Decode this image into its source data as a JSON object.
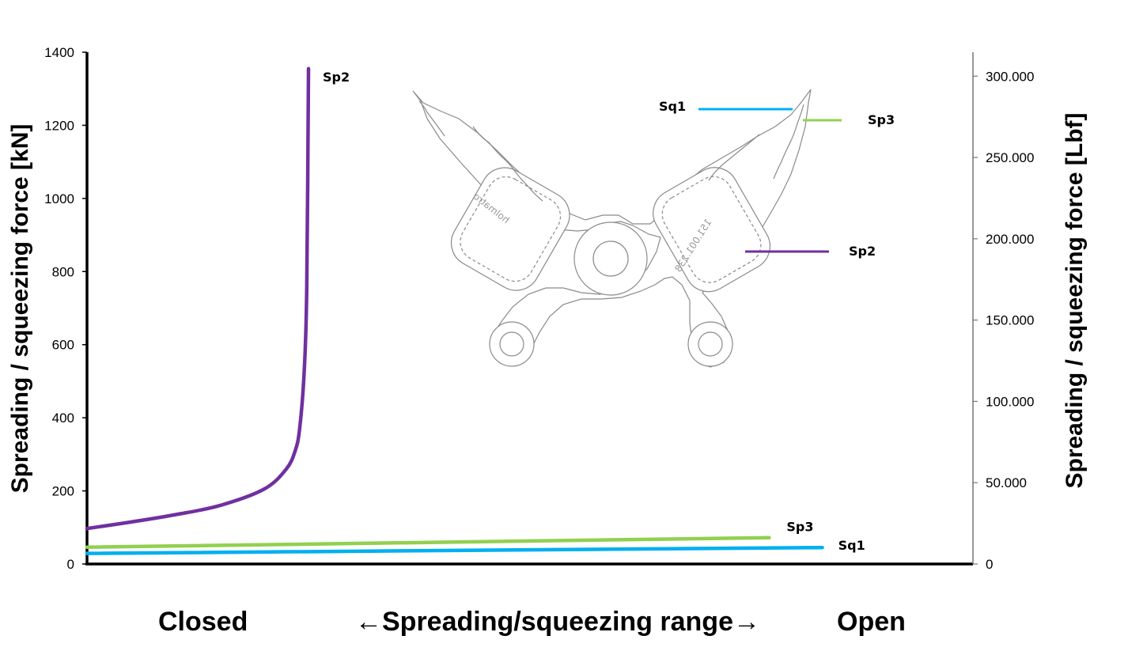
{
  "chart_data": {
    "type": "line",
    "xlabel": "←Spreading/squeezing range→",
    "x_end_labels": {
      "left": "Closed",
      "right": "Open"
    },
    "ylabel": "Spreading / squeezing force [kN]",
    "ylabel_right": "Spreading / squeezing  force [Lbf]",
    "ylim": [
      0,
      1400
    ],
    "yticks": [
      "0",
      "200",
      "400",
      "600",
      "800",
      "1000",
      "1200",
      "1400"
    ],
    "ylim_right": [
      0,
      314730
    ],
    "yticks_right": [
      "0",
      "50.000",
      "100.000",
      "150.000",
      "200.000",
      "250.000",
      "300.000"
    ],
    "grid": false,
    "series": [
      {
        "name": "Sp2",
        "color": "#7030A0",
        "x": [
          0.0,
          0.05,
          0.1,
          0.15,
          0.2,
          0.225,
          0.235,
          0.24,
          0.245,
          0.248,
          0.25
        ],
        "y": [
          97,
          115,
          135,
          160,
          205,
          260,
          310,
          370,
          520,
          750,
          1355
        ]
      },
      {
        "name": "Sp3",
        "color": "#92D050",
        "x": [
          0.0,
          0.77
        ],
        "y": [
          46,
          72
        ]
      },
      {
        "name": "Sq1",
        "color": "#00B0F0",
        "x": [
          0.0,
          0.83
        ],
        "y": [
          29,
          45
        ]
      }
    ],
    "legend": {
      "image_labels": [
        "Sq1",
        "Sp3",
        "Sp2"
      ],
      "colors": [
        "#00B0F0",
        "#92D050",
        "#7030A0"
      ]
    },
    "annotations": {
      "tool_engraving": [
        "holmatro",
        "151.001.238"
      ]
    }
  }
}
